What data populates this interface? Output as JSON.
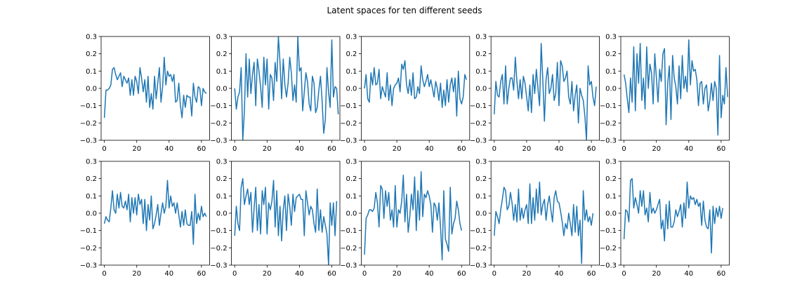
{
  "figure": {
    "title": "Latent spaces for ten different seeds"
  },
  "chart_data": {
    "type": "line",
    "layout": {
      "rows": 2,
      "cols": 5
    },
    "xlim": [
      -2,
      65
    ],
    "ylim": [
      -0.3,
      0.3
    ],
    "xticks": [
      0,
      20,
      40,
      60
    ],
    "yticks": [
      -0.3,
      -0.2,
      -0.1,
      0.0,
      0.1,
      0.2,
      0.3
    ],
    "xtick_labels": [
      "0",
      "20",
      "40",
      "60"
    ],
    "ytick_labels": [
      "−0.3",
      "−0.2",
      "−0.1",
      "0.0",
      "0.1",
      "0.2",
      "0.3"
    ],
    "color": "#1f77b4",
    "grid": false,
    "n_points": 64,
    "panels": [
      {
        "values": [
          -0.17,
          -0.01,
          -0.01,
          0.0,
          0.02,
          0.11,
          0.12,
          0.08,
          0.05,
          0.07,
          0.09,
          0.01,
          0.07,
          0.05,
          0.03,
          0.06,
          -0.04,
          0.05,
          -0.04,
          0.07,
          0.04,
          -0.03,
          0.12,
          0.06,
          -0.02,
          0.05,
          -0.08,
          0.07,
          -0.11,
          -0.03,
          -0.12,
          0.07,
          -0.06,
          0.03,
          0.12,
          -0.08,
          0.01,
          0.18,
          0.02,
          0.1,
          0.07,
          0.08,
          0.04,
          0.08,
          -0.08,
          -0.07,
          0.03,
          -0.1,
          -0.17,
          -0.04,
          -0.11,
          -0.04,
          -0.05,
          -0.05,
          -0.16,
          0.03,
          -0.05,
          -0.08,
          0.01,
          0.0,
          -0.1,
          0.0,
          -0.02,
          -0.03
        ]
      },
      {
        "values": [
          0.0,
          -0.12,
          -0.05,
          -0.02,
          0.12,
          -0.3,
          -0.13,
          0.2,
          -0.05,
          0.17,
          -0.03,
          0.08,
          0.15,
          -0.1,
          0.17,
          0.1,
          0.01,
          -0.11,
          0.18,
          0.02,
          0.17,
          -0.12,
          0.08,
          0.06,
          -0.07,
          0.15,
          0.04,
          0.3,
          0.15,
          -0.06,
          0.17,
          0.02,
          -0.05,
          0.03,
          0.18,
          0.09,
          -0.07,
          0.02,
          -0.08,
          0.3,
          0.1,
          0.12,
          -0.13,
          -0.02,
          0.09,
          0.04,
          -0.09,
          -0.13,
          0.07,
          0.03,
          -0.14,
          -0.11,
          -0.01,
          0.07,
          -0.07,
          -0.26,
          -0.18,
          0.12,
          -0.02,
          -0.11,
          0.28,
          -0.05,
          0.01,
          0.0,
          -0.15
        ]
      },
      {
        "values": [
          0.0,
          0.08,
          -0.06,
          -0.08,
          0.09,
          0.02,
          0.12,
          0.02,
          0.03,
          0.11,
          -0.06,
          0.01,
          -0.02,
          -0.05,
          0.09,
          -0.07,
          0.02,
          -0.1,
          0.0,
          0.02,
          0.03,
          0.06,
          -0.02,
          0.14,
          0.11,
          0.16,
          0.02,
          -0.03,
          0.05,
          -0.04,
          0.09,
          -0.06,
          -0.05,
          0.01,
          -0.03,
          0.13,
          0.05,
          0.01,
          0.04,
          0.08,
          0.01,
          0.05,
          0.0,
          -0.05,
          0.04,
          0.0,
          -0.07,
          0.03,
          -0.11,
          -0.01,
          -0.1,
          0.05,
          -0.08,
          0.02,
          0.06,
          -0.02,
          0.06,
          -0.16,
          0.1,
          -0.06,
          -0.09,
          -0.05,
          0.08,
          0.05
        ]
      },
      {
        "values": [
          -0.15,
          0.04,
          -0.04,
          -0.05,
          0.04,
          0.08,
          -0.09,
          0.13,
          -0.09,
          0.0,
          0.06,
          0.06,
          -0.01,
          0.18,
          0.04,
          -0.06,
          0.05,
          -0.06,
          0.07,
          0.03,
          -0.05,
          -0.13,
          0.02,
          -0.14,
          0.08,
          -0.03,
          0.11,
          0.0,
          -0.1,
          0.26,
          0.05,
          -0.19,
          0.05,
          0.12,
          -0.03,
          0.0,
          0.08,
          -0.07,
          -0.03,
          0.15,
          -0.1,
          0.16,
          0.13,
          0.04,
          0.06,
          0.1,
          -0.05,
          -0.09,
          0.04,
          -0.13,
          -0.04,
          0.02,
          -0.2,
          0.0,
          -0.04,
          -0.07,
          -0.16,
          -0.3,
          0.13,
          0.02,
          0.04,
          -0.05,
          -0.1,
          0.01
        ]
      },
      {
        "values": [
          0.08,
          0.03,
          -0.06,
          -0.14,
          0.06,
          -0.08,
          0.24,
          -0.13,
          0.2,
          0.03,
          0.26,
          -0.07,
          0.06,
          -0.12,
          0.24,
          0.0,
          0.14,
          0.09,
          -0.09,
          0.2,
          0.06,
          -0.08,
          0.11,
          0.04,
          0.2,
          0.23,
          -0.21,
          0.03,
          0.13,
          -0.18,
          0.19,
          0.06,
          0.01,
          -0.09,
          0.13,
          -0.06,
          0.19,
          0.0,
          0.07,
          -0.02,
          0.28,
          0.02,
          0.16,
          0.1,
          0.11,
          0.05,
          -0.1,
          0.03,
          0.04,
          -0.09,
          0.0,
          0.02,
          -0.13,
          -0.07,
          0.03,
          -0.07,
          0.04,
          0.0,
          -0.27,
          0.19,
          -0.17,
          -0.04,
          -0.09,
          0.12,
          -0.05
        ]
      },
      {
        "values": [
          -0.06,
          -0.02,
          -0.04,
          -0.05,
          0.03,
          0.13,
          0.02,
          0.0,
          0.11,
          0.03,
          0.12,
          0.04,
          0.03,
          0.07,
          0.02,
          0.11,
          -0.05,
          0.09,
          0.0,
          0.09,
          -0.01,
          0.11,
          0.05,
          0.08,
          -0.06,
          0.08,
          -0.1,
          0.05,
          -0.04,
          0.1,
          -0.09,
          -0.06,
          -0.01,
          0.05,
          -0.07,
          0.0,
          0.06,
          0.0,
          0.04,
          0.19,
          0.03,
          0.1,
          0.04,
          0.06,
          0.0,
          0.06,
          -0.01,
          -0.08,
          0.01,
          -0.07,
          0.02,
          -0.06,
          -0.07,
          -0.07,
          0.01,
          -0.18,
          0.11,
          -0.06,
          0.0,
          -0.04,
          0.04,
          -0.02,
          0.0,
          -0.02
        ]
      },
      {
        "values": [
          -0.13,
          0.04,
          -0.06,
          -0.1,
          0.15,
          0.2,
          0.05,
          0.1,
          0.14,
          0.05,
          0.12,
          -0.11,
          0.03,
          0.15,
          -0.1,
          0.05,
          -0.12,
          0.13,
          0.05,
          0.15,
          -0.12,
          0.06,
          0.02,
          0.07,
          0.19,
          -0.08,
          0.13,
          -0.13,
          0.04,
          -0.16,
          0.02,
          0.1,
          -0.1,
          0.11,
          0.04,
          -0.07,
          0.11,
          0.01,
          0.09,
          0.1,
          0.11,
          0.08,
          0.08,
          -0.13,
          0.13,
          0.06,
          -0.01,
          0.04,
          0.02,
          -0.06,
          -0.11,
          0.14,
          -0.1,
          0.02,
          -0.11,
          -0.02,
          -0.07,
          -0.12,
          -0.3,
          0.06,
          -0.07,
          0.06,
          -0.13,
          0.07
        ]
      },
      {
        "values": [
          -0.24,
          -0.03,
          -0.01,
          0.02,
          0.02,
          0.01,
          0.03,
          0.12,
          0.06,
          -0.08,
          0.16,
          0.14,
          -0.03,
          0.13,
          0.04,
          0.12,
          -0.04,
          0.02,
          -0.08,
          0.16,
          -0.08,
          0.02,
          0.0,
          0.07,
          0.22,
          -0.05,
          0.11,
          -0.11,
          -0.02,
          0.11,
          0.02,
          0.21,
          -0.1,
          0.13,
          -0.04,
          0.24,
          -0.02,
          0.11,
          0.09,
          0.13,
          0.1,
          0.05,
          -0.11,
          0.06,
          0.04,
          -0.04,
          0.06,
          -0.08,
          -0.27,
          0.13,
          -0.15,
          -0.18,
          -0.22,
          0.15,
          -0.12,
          -0.06,
          -0.03,
          0.07,
          0.02,
          -0.06,
          -0.1
        ]
      },
      {
        "values": [
          -0.13,
          0.01,
          -0.02,
          -0.06,
          0.02,
          0.08,
          0.15,
          0.13,
          0.02,
          0.04,
          0.12,
          0.06,
          -0.04,
          0.05,
          -0.05,
          0.14,
          -0.04,
          0.03,
          -0.03,
          0.02,
          0.05,
          -0.06,
          0.17,
          -0.06,
          0.09,
          -0.04,
          0.14,
          0.0,
          0.18,
          -0.01,
          0.05,
          0.08,
          -0.04,
          0.05,
          0.1,
          0.02,
          -0.05,
          0.09,
          0.13,
          0.07,
          0.06,
          0.01,
          -0.05,
          -0.13,
          -0.06,
          -0.09,
          0.0,
          -0.06,
          -0.13,
          0.05,
          -0.11,
          0.04,
          -0.13,
          -0.04,
          -0.29,
          0.13,
          -0.04,
          0.02,
          -0.05,
          -0.02,
          -0.07,
          0.0
        ]
      },
      {
        "values": [
          -0.15,
          0.02,
          0.01,
          -0.05,
          0.19,
          0.2,
          0.03,
          0.09,
          0.05,
          0.0,
          0.13,
          0.04,
          0.13,
          -0.01,
          0.03,
          -0.05,
          0.12,
          0.0,
          0.03,
          0.0,
          0.02,
          0.05,
          0.08,
          -0.09,
          -0.04,
          -0.16,
          0.05,
          -0.09,
          0.07,
          -0.08,
          -0.08,
          -0.05,
          0.02,
          -0.02,
          0.01,
          0.05,
          -0.08,
          0.06,
          -0.03,
          0.18,
          0.03,
          0.1,
          0.08,
          0.09,
          0.05,
          0.08,
          0.04,
          0.06,
          -0.07,
          0.07,
          -0.04,
          -0.08,
          -0.09,
          0.02,
          -0.23,
          0.04,
          -0.06,
          0.03,
          -0.02,
          0.04,
          -0.03,
          0.03
        ]
      }
    ]
  }
}
